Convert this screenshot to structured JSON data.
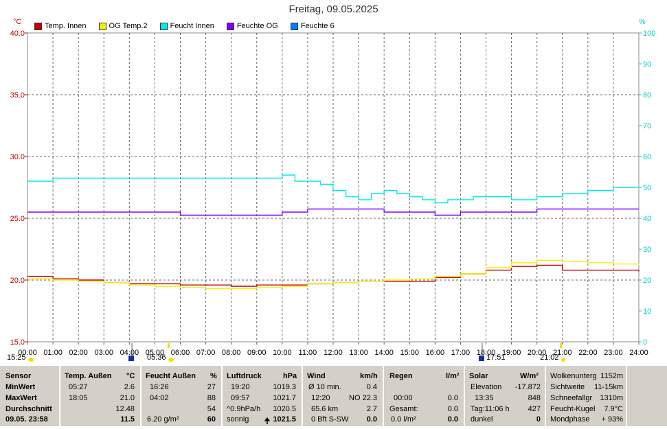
{
  "chart_data": {
    "type": "line",
    "title": "Freitag, 09.05.2025",
    "y_unit_left": "°C",
    "y_unit_right": "%",
    "ylim_left": [
      15,
      40
    ],
    "ylim_right": [
      0,
      100
    ],
    "y_ticks_left": [
      "15.0",
      "20.0",
      "25.0",
      "30.0",
      "35.0",
      "40.0"
    ],
    "y_ticks_right": [
      "0",
      "10",
      "20",
      "30",
      "40",
      "50",
      "60",
      "70",
      "80",
      "90",
      "100"
    ],
    "x_ticks": [
      "00:00",
      "01:00",
      "02:00",
      "03:00",
      "04:00",
      "05:00",
      "06:00",
      "07:00",
      "08:00",
      "09:00",
      "10:00",
      "11:00",
      "12:00",
      "13:00",
      "14:00",
      "15:00",
      "16:00",
      "17:00",
      "18:00",
      "19:00",
      "20:00",
      "21:00",
      "22:00",
      "23:00",
      "24:00"
    ],
    "grid": true,
    "legend_position": "top-left",
    "series": [
      {
        "name": "Temp. Innen",
        "color": "#c00000",
        "axis": "left",
        "x": [
          0,
          1,
          2,
          3,
          4,
          5,
          6,
          7,
          8,
          9,
          10,
          11,
          12,
          13,
          14,
          15,
          16,
          17,
          18,
          19,
          20,
          21,
          22,
          23,
          24
        ],
        "y": [
          20.3,
          20.1,
          20.0,
          19.8,
          19.7,
          19.7,
          19.6,
          19.6,
          19.5,
          19.6,
          19.6,
          19.7,
          19.8,
          19.9,
          19.9,
          19.9,
          20.2,
          20.5,
          20.8,
          21.1,
          21.2,
          20.8,
          20.8,
          20.8,
          20.7
        ]
      },
      {
        "name": "OG Temp.2",
        "color": "#f0f000",
        "axis": "left",
        "x": [
          0,
          1,
          2,
          3,
          4,
          5,
          6,
          7,
          8,
          9,
          10,
          11,
          12,
          13,
          14,
          15,
          16,
          17,
          18,
          19,
          20,
          21,
          22,
          23,
          24
        ],
        "y": [
          20.1,
          20.0,
          19.9,
          19.8,
          19.6,
          19.5,
          19.4,
          19.3,
          19.3,
          19.4,
          19.5,
          19.7,
          19.8,
          19.9,
          20.0,
          20.1,
          20.3,
          20.5,
          21.0,
          21.4,
          21.6,
          21.5,
          21.4,
          21.3,
          21.2
        ]
      },
      {
        "name": "Feucht Innen",
        "color": "#00e8e8",
        "axis": "right",
        "x": [
          0,
          1,
          2,
          3,
          4,
          5,
          6,
          7,
          8,
          9,
          10,
          10.5,
          11,
          11.5,
          12,
          12.5,
          13,
          13.5,
          14,
          14.5,
          15,
          15.5,
          16,
          16.5,
          17,
          17.5,
          18,
          18.5,
          19,
          19.5,
          20,
          21,
          22,
          23,
          24
        ],
        "y": [
          52,
          53,
          53,
          53,
          53,
          53,
          53,
          53,
          53,
          53,
          54,
          52,
          52,
          51,
          49,
          47,
          46,
          48,
          49,
          48,
          47,
          46,
          45,
          46,
          46,
          47,
          47,
          47,
          46,
          46,
          47,
          48,
          49,
          50,
          50
        ]
      },
      {
        "name": "Feuchte OG",
        "color": "#8000ff",
        "axis": "right",
        "x": [
          0,
          1,
          2,
          3,
          4,
          5,
          6,
          7,
          8,
          9,
          10,
          11,
          11.5,
          12,
          12.5,
          13,
          13.5,
          14,
          15,
          16,
          17,
          18,
          19,
          20,
          21,
          22,
          23,
          24
        ],
        "y": [
          42,
          42,
          42,
          42,
          42,
          42,
          41,
          41,
          41,
          41,
          42,
          43,
          43,
          43,
          43,
          43,
          43,
          42,
          42,
          41,
          42,
          42,
          42,
          43,
          43,
          43,
          43,
          43
        ]
      },
      {
        "name": "Feuchte 6",
        "color": "#0080ff",
        "axis": "right",
        "x": [],
        "y": []
      }
    ]
  },
  "sun": {
    "sunrise_prev": "15:25",
    "sunrise": "05:36",
    "sunset": "17:51",
    "moon": "21:02"
  },
  "panel": {
    "sensor": {
      "header": "Sensor",
      "min": "MinWert",
      "max": "MaxWert",
      "avg": "Durchschnitt",
      "date": "09.05. 23:58"
    },
    "temp": {
      "header": "Temp. Außen",
      "unit": "°C",
      "min_time": "05:27",
      "min_val": "2.6",
      "max_time": "18:05",
      "max_val": "21.0",
      "avg": "12.48",
      "cur": "11.5"
    },
    "feucht": {
      "header": "Feucht Außen",
      "unit": "%",
      "min_time": "16:26",
      "min_val": "27",
      "max_time": "04:02",
      "max_val": "88",
      "avg": "54",
      "abs": "6.20 g/m²",
      "cur": "60"
    },
    "luft": {
      "header": "Luftdruck",
      "unit": "hPa",
      "min_time": "19:20",
      "min_val": "1019.3",
      "max_time": "09:57",
      "max_val": "1021.7",
      "trend_label": "^0.9hPa/h",
      "trend_val": "1020.5",
      "state": "sonnig",
      "cur": "1021.5"
    },
    "wind": {
      "header": "Wind",
      "unit": "km/h",
      "avg_label": "Ø 10 min.",
      "avg_val": "0.4",
      "max_time": "12:20",
      "max_dir": "NO 22.3",
      "dist": "65.6 km",
      "dist_val": "2.7",
      "bft": "0 Bft S-SW",
      "cur": "0.0"
    },
    "regen": {
      "header": "Regen",
      "unit": "l/m²",
      "t1": "00:00",
      "v1": "0.0",
      "total_label": "Gesamt:",
      "total": "0.0",
      "rate": "0.0 l/m²",
      "cur": "0.0"
    },
    "solar": {
      "header": "Solar",
      "unit": "W/m²",
      "elev_label": "Elevation",
      "elev": "-17.872",
      "max_time": "13:35",
      "max_val": "848",
      "day": "Tag:11:06 h",
      "day_val": "427",
      "state": "dunkel",
      "cur": "0"
    },
    "extra": {
      "l1": "Wolkenunterg",
      "v1": "1152m",
      "l2": "Sichtweite",
      "v2": "11-15km",
      "l3": "Schneefallgr",
      "v3": "1310m",
      "l4": "Feucht-Kugel",
      "v4": "7.9°C",
      "l5": "Mondphase",
      "v5": "+ 93%"
    }
  }
}
